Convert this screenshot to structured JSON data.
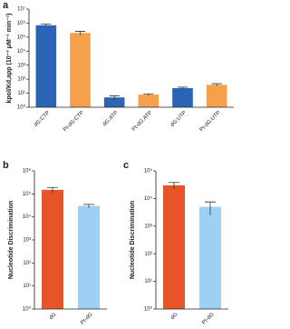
{
  "chart_data": [
    {
      "type": "bar",
      "label": "a",
      "ylabel": "kpol/Kd,app (10⁻³ μM⁻¹ min⁻¹)",
      "log": true,
      "categories": [
        "dG:CTP",
        "Pt-dG:CTP",
        "dG:ATP",
        "Pt-dG:ATP",
        "dG:UTP",
        "Pt-dG:UTP"
      ],
      "values": [
        700000,
        200000,
        5,
        8,
        23,
        40
      ],
      "errors": [
        150000,
        60000,
        1.5,
        1,
        4,
        8
      ],
      "colors": [
        "#2b64b5",
        "#f5a04a",
        "#2b64b5",
        "#f5a04a",
        "#2b64b5",
        "#f5a04a"
      ],
      "ylim": [
        1,
        10000000
      ],
      "yticks": [
        {
          "value": 1,
          "label": "10⁰"
        },
        {
          "value": 10,
          "label": "10¹"
        },
        {
          "value": 100,
          "label": "10²"
        },
        {
          "value": 1000,
          "label": "10³"
        },
        {
          "value": 10000,
          "label": "10⁴"
        },
        {
          "value": 100000,
          "label": "10⁵"
        },
        {
          "value": 1000000,
          "label": "10⁶"
        },
        {
          "value": 10000000,
          "label": "10⁷"
        }
      ]
    },
    {
      "type": "bar",
      "label": "b",
      "ylabel": "Nucleotide Discrimination",
      "log": true,
      "categories": [
        "dG",
        "Pt-dG"
      ],
      "values": [
        150000,
        30000
      ],
      "errors": [
        40000,
        5000
      ],
      "colors": [
        "#e8542a",
        "#9dd0f2"
      ],
      "ylim": [
        1,
        1000000
      ],
      "yticks": [
        {
          "value": 1,
          "label": "10⁰"
        },
        {
          "value": 10,
          "label": "10¹"
        },
        {
          "value": 100,
          "label": "10²"
        },
        {
          "value": 1000,
          "label": "10³"
        },
        {
          "value": 10000,
          "label": "10⁴"
        },
        {
          "value": 100000,
          "label": "10⁵"
        },
        {
          "value": 1000000,
          "label": "10⁶"
        }
      ]
    },
    {
      "type": "bar",
      "label": "c",
      "ylabel": "Nucleotide Discrimination",
      "log": true,
      "categories": [
        "dG",
        "Pt-dG"
      ],
      "values": [
        30000,
        5000
      ],
      "errors": [
        8000,
        2500
      ],
      "colors": [
        "#e8542a",
        "#9dd0f2"
      ],
      "ylim": [
        1,
        100000
      ],
      "yticks": [
        {
          "value": 1,
          "label": "10⁰"
        },
        {
          "value": 10,
          "label": "10¹"
        },
        {
          "value": 100,
          "label": "10²"
        },
        {
          "value": 1000,
          "label": "10³"
        },
        {
          "value": 10000,
          "label": "10⁴"
        },
        {
          "value": 100000,
          "label": "10⁵"
        }
      ]
    }
  ]
}
